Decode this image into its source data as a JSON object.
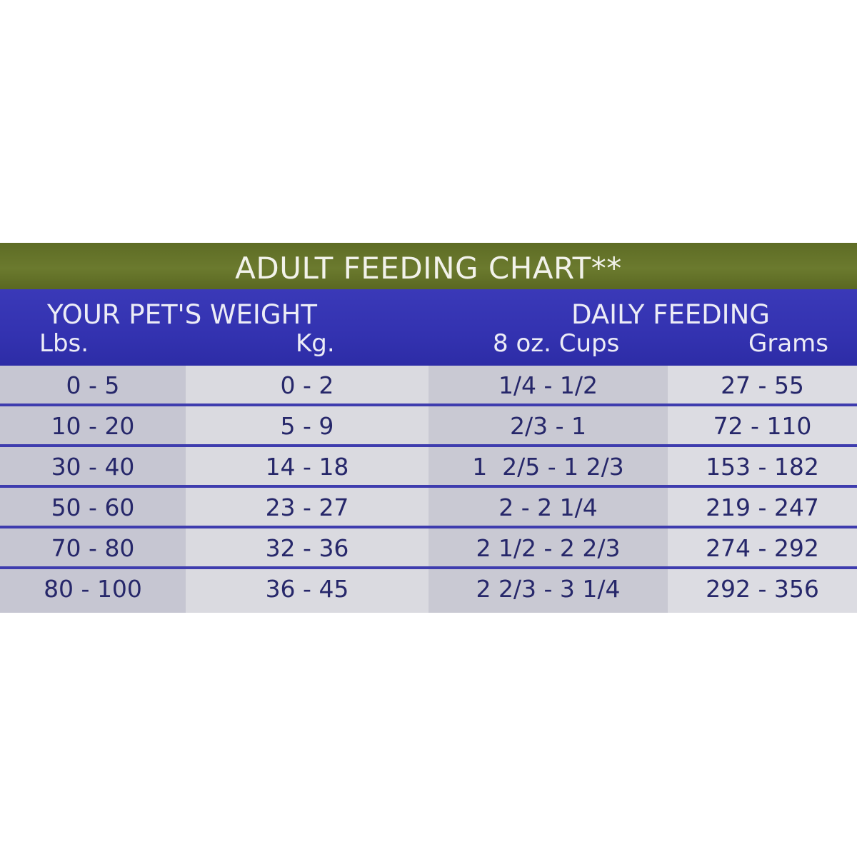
{
  "chart": {
    "title": "ADULT FEEDING CHART**",
    "groups": {
      "weight": "YOUR PET'S WEIGHT",
      "feeding": "DAILY FEEDING"
    },
    "columns": {
      "lbs": "Lbs.",
      "kg": "Kg.",
      "cups": "8 oz. Cups",
      "grams": "Grams"
    },
    "rows": [
      {
        "lbs": "0 - 5",
        "kg": "0 - 2",
        "cups": "1/4 - 1/2",
        "grams": "27 - 55"
      },
      {
        "lbs": "10 - 20",
        "kg": "5 - 9",
        "cups": "2/3 - 1",
        "grams": "72 - 110"
      },
      {
        "lbs": "30 - 40",
        "kg": "14 - 18",
        "cups": "1  2/5 - 1 2/3",
        "grams": "153 - 182"
      },
      {
        "lbs": "50 - 60",
        "kg": "23 - 27",
        "cups": "2 - 2 1/4",
        "grams": "219 - 247"
      },
      {
        "lbs": "70 - 80",
        "kg": "32 - 36",
        "cups": "2 1/2 - 2 2/3",
        "grams": "274 - 292"
      },
      {
        "lbs": "80 - 100",
        "kg": "36 - 45",
        "cups": "2 2/3 - 3 1/4",
        "grams": "292 - 356"
      }
    ]
  },
  "colors": {
    "title_bar": "#6b7a2e",
    "header_bar": "#3332b0",
    "row_divider": "#3e3cae",
    "cell_text": "#26276a"
  }
}
